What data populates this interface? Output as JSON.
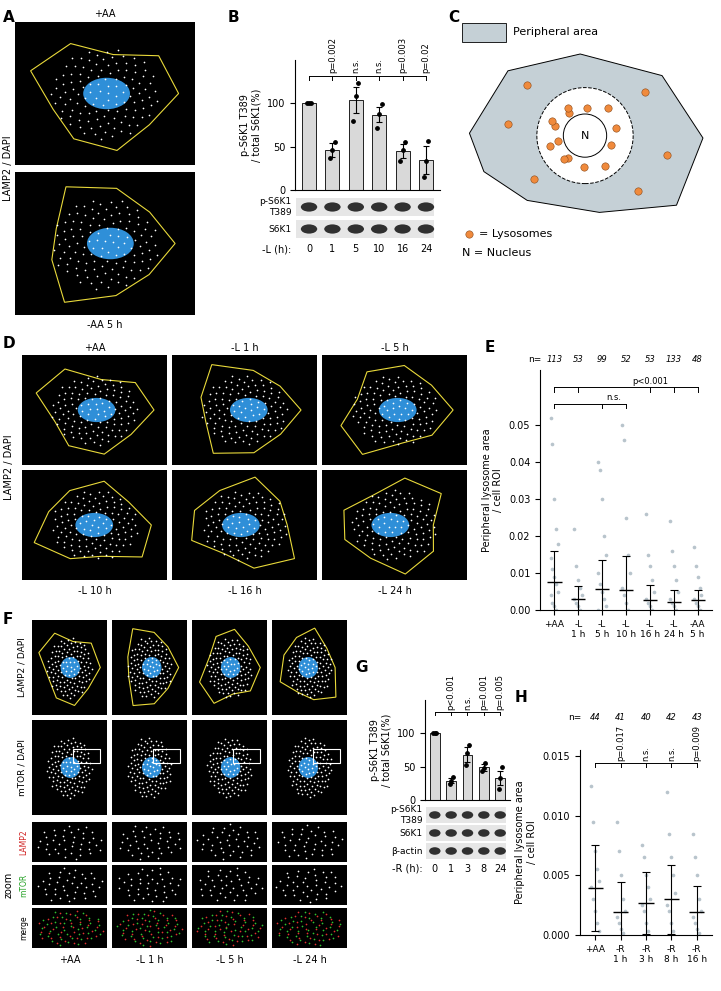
{
  "panel_labels": [
    "A",
    "B",
    "C",
    "D",
    "E",
    "F",
    "G",
    "H"
  ],
  "images": {
    "A": {
      "stain": "LAMP2 / DAPI",
      "conditions": [
        "+AA",
        "-AA 5 h"
      ]
    },
    "C": {
      "peripheral": "Peripheral area",
      "lysosomes": "= Lysosomes",
      "nucleus": "N = Nucleus",
      "nucleus_mark": "N"
    },
    "D": {
      "stain": "LAMP2 / DAPI",
      "conditions": [
        "+AA",
        "-L 1 h",
        "-L 5 h",
        "-L 10 h",
        "-L 16 h",
        "-L 24 h"
      ]
    },
    "F": {
      "stains": [
        "LAMP2 / DAPI",
        "mTOR / DAPI"
      ],
      "zoom": "zoom",
      "zoom_rows": [
        "LAMP2",
        "mTOR",
        "merge"
      ],
      "conditions": [
        "+AA",
        "-L 1 h",
        "-L 5 h",
        "-L 24 h"
      ]
    }
  },
  "chart_data": [
    {
      "type": "bar",
      "y_label": "p-S6K1 T389\n/ total S6K1(%)",
      "x_label": "-L (h):",
      "categories": [
        "0",
        "1",
        "5",
        "10",
        "16",
        "24"
      ],
      "values": [
        100,
        46,
        104,
        87,
        45,
        35
      ],
      "errors": [
        0,
        8,
        15,
        9,
        8,
        16
      ],
      "points": [
        [
          100,
          100,
          100
        ],
        [
          37,
          46,
          55
        ],
        [
          80,
          108,
          123
        ],
        [
          72,
          88,
          99
        ],
        [
          33,
          46,
          55
        ],
        [
          15,
          34,
          57
        ]
      ],
      "p_values": [
        null,
        "p=0.002",
        "n.s.",
        "n.s.",
        "p=0.003",
        "p=0.02"
      ],
      "blots": [
        "p-S6K1\nT389",
        "S6K1"
      ],
      "color": "#d9d9d9",
      "ylim": [
        0,
        150
      ],
      "yticks": [
        0,
        50,
        100
      ],
      "tick_labels": "y"
    },
    {
      "type": "dot",
      "y_label": "Peripheral lysosome area\n/ cell ROI",
      "categories": [
        "+AA",
        "-L\n1 h",
        "-L\n5 h",
        "-L\n10 h",
        "-L\n16 h",
        "-L\n24 h",
        "-AA\n5 h"
      ],
      "n_label": "n=",
      "n": [
        113,
        53,
        99,
        52,
        53,
        133,
        48
      ],
      "mean": [
        0.0075,
        0.003,
        0.0058,
        0.0055,
        0.0027,
        0.0023,
        0.0027
      ],
      "sd": [
        0.0085,
        0.0035,
        0.0078,
        0.009,
        0.004,
        0.003,
        0.0028
      ],
      "points": [
        [
          0.052,
          0.045,
          0.03,
          0.022,
          0.018,
          0.014,
          0.011,
          0.009,
          0.007,
          0.005,
          0.004,
          0.002,
          0.001,
          0.0
        ],
        [
          0.022,
          0.012,
          0.008,
          0.006,
          0.004,
          0.003,
          0.002,
          0.001,
          0.0
        ],
        [
          0.04,
          0.038,
          0.03,
          0.02,
          0.015,
          0.01,
          0.007,
          0.005,
          0.003,
          0.001,
          0.0
        ],
        [
          0.05,
          0.046,
          0.025,
          0.015,
          0.01,
          0.006,
          0.004,
          0.002,
          0.0
        ],
        [
          0.026,
          0.015,
          0.012,
          0.008,
          0.005,
          0.003,
          0.002,
          0.001,
          0.0
        ],
        [
          0.024,
          0.016,
          0.012,
          0.008,
          0.005,
          0.003,
          0.002,
          0.001,
          0.0
        ],
        [
          0.017,
          0.012,
          0.009,
          0.006,
          0.004,
          0.003,
          0.002,
          0.001,
          0.0
        ]
      ],
      "comparisons": [
        {
          "text": "p<0.001",
          "reference": "+AA",
          "targets": [
            "-L\n1 h",
            "-L\n16 h",
            "-L\n24 h",
            "-AA\n5 h"
          ]
        },
        {
          "text": "n.s.",
          "reference": "+AA",
          "targets": [
            "-L\n5 h",
            "-L\n10 h"
          ]
        }
      ],
      "color": "#b8c4cc",
      "ylim": [
        0,
        0.065
      ],
      "yticks": [
        {
          "value": 0,
          "label": "0.00"
        },
        0.01,
        0.02,
        0.03,
        0.04,
        0.05
      ]
    },
    {
      "type": "bar",
      "y_label": "p-S6K1 T389\n/ total S6K1(%)",
      "x_label": "-R (h):",
      "categories": [
        "0",
        "1",
        "3",
        "8",
        "24"
      ],
      "values": [
        100,
        29,
        68,
        49,
        33
      ],
      "errors": [
        0,
        4,
        11,
        5,
        10
      ],
      "points": [
        [
          100,
          100,
          100
        ],
        [
          24,
          29,
          34
        ],
        [
          52,
          70,
          82
        ],
        [
          43,
          48,
          56
        ],
        [
          17,
          33,
          50
        ]
      ],
      "p_values": [
        null,
        "p<0.001",
        "n.s.",
        "p=0.001",
        "p=0.005"
      ],
      "blots": [
        "p-S6K1\nT389",
        "S6K1",
        "β-actin"
      ],
      "color": "#d9d9d9",
      "ylim": [
        0,
        150
      ],
      "yticks": [
        0,
        50,
        100
      ],
      "tick_labels": "y"
    },
    {
      "type": "dot",
      "y_label": "Peripheral lysosome area\n/ cell ROI",
      "categories": [
        "+AA",
        "-R\n1 h",
        "-R\n3 h",
        "-R\n8 h",
        "-R\n16 h"
      ],
      "n_label": "n=",
      "n": [
        44,
        41,
        40,
        42,
        43
      ],
      "mean": [
        0.0039,
        0.0019,
        0.0027,
        0.003,
        0.0019
      ],
      "sd": [
        0.0036,
        0.0025,
        0.0026,
        0.0029,
        0.0022
      ],
      "points": [
        [
          0.0125,
          0.0095,
          0.007,
          0.0055,
          0.0045,
          0.004,
          0.003,
          0.002,
          0.001,
          0.0003
        ],
        [
          0.0095,
          0.007,
          0.005,
          0.003,
          0.002,
          0.0015,
          0.001,
          0.0005,
          0.0002
        ],
        [
          0.0075,
          0.0065,
          0.005,
          0.004,
          0.003,
          0.0025,
          0.002,
          0.001,
          0.0003
        ],
        [
          0.012,
          0.0085,
          0.0065,
          0.005,
          0.0035,
          0.0025,
          0.002,
          0.001,
          0.0003
        ],
        [
          0.0085,
          0.0065,
          0.005,
          0.003,
          0.002,
          0.0015,
          0.001,
          0.0005,
          0.0002
        ]
      ],
      "p_values": [
        null,
        "p=0.017",
        "n.s.",
        "n.s.",
        "p=0.009"
      ],
      "color": "#b8c4cc",
      "ylim": [
        0,
        0.0155
      ],
      "yticks": [
        {
          "value": 0,
          "label": "0.000"
        },
        0.005,
        {
          "value": 0.01,
          "label": "0.010"
        },
        0.015
      ]
    }
  ]
}
